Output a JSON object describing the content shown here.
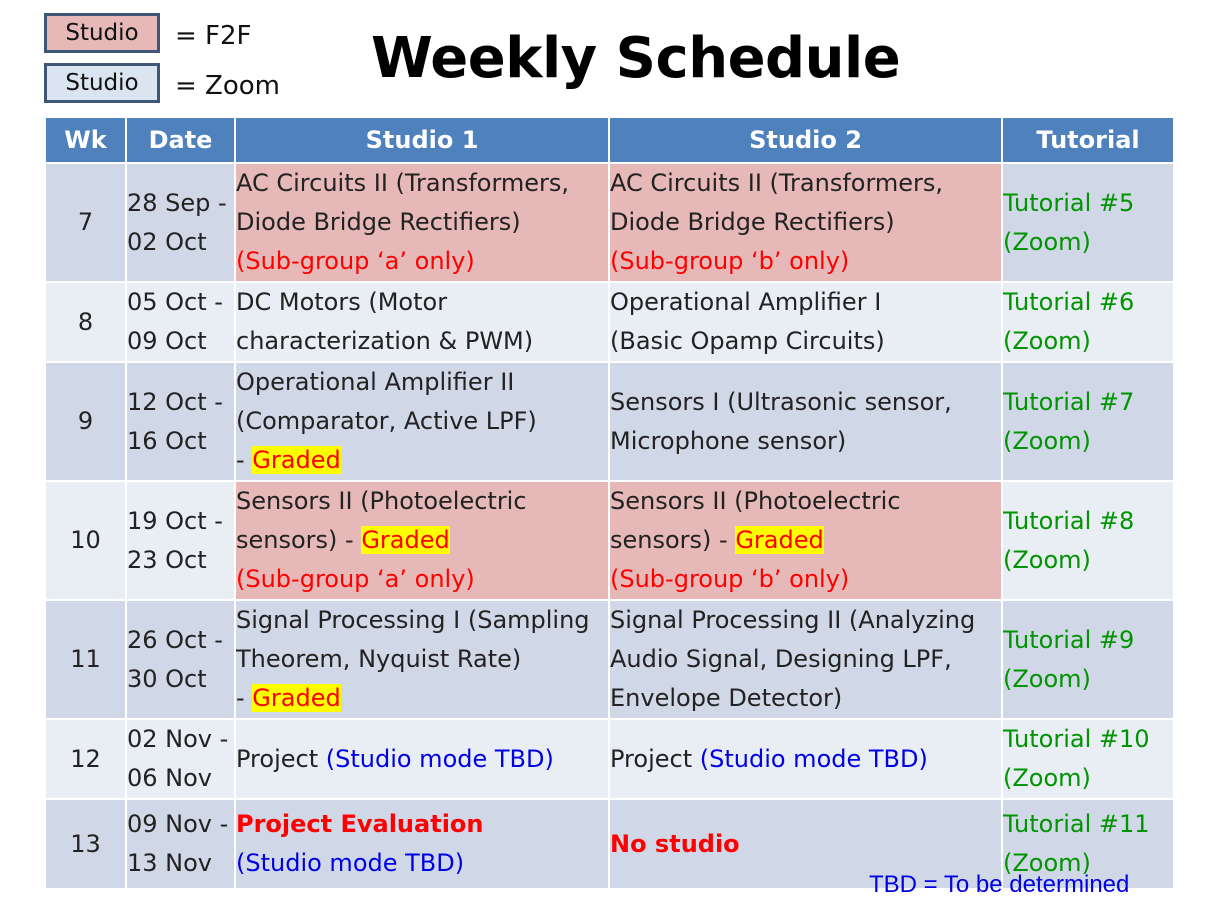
{
  "title": "Weekly Schedule",
  "legend": [
    {
      "label": "Studio",
      "meaning": "= F2F",
      "color": "#e6b9b8"
    },
    {
      "label": "Studio",
      "meaning": "= Zoom",
      "color": "#dbe5f1"
    }
  ],
  "columns": [
    "Wk",
    "Date",
    "Studio 1",
    "Studio 2",
    "Tutorial"
  ],
  "rows": [
    {
      "wk": "7",
      "date1": "28 Sep -",
      "date2": "02 Oct",
      "s1": [
        "AC Circuits II (Transformers,",
        "Diode Bridge Rectifiers)",
        "(Sub-group ‘a’ only)"
      ],
      "s2": [
        "AC Circuits II (Transformers,",
        "Diode Bridge Rectifiers)",
        "(Sub-group ‘b’ only)"
      ],
      "tut1": "Tutorial #5",
      "tut2": "(Zoom)"
    },
    {
      "wk": "8",
      "date1": "05 Oct -",
      "date2": "09 Oct",
      "s1": [
        "DC Motors (Motor",
        "characterization & PWM)"
      ],
      "s2": [
        "Operational Amplifier I",
        "(Basic Opamp Circuits)"
      ],
      "tut1": "Tutorial #6",
      "tut2": "(Zoom)"
    },
    {
      "wk": "9",
      "date1": "12 Oct -",
      "date2": "16 Oct",
      "s1": [
        "Operational Amplifier II",
        "(Comparator, Active LPF)",
        "- ",
        "Graded"
      ],
      "s2": [
        "Sensors I (Ultrasonic sensor,",
        "Microphone sensor)"
      ],
      "tut1": "Tutorial #7",
      "tut2": "(Zoom)"
    },
    {
      "wk": "10",
      "date1": "19 Oct -",
      "date2": "23 Oct",
      "s1": [
        "Sensors II (Photoelectric",
        "sensors) - ",
        "Graded",
        "(Sub-group ‘a’ only)"
      ],
      "s2": [
        "Sensors II (Photoelectric",
        "sensors) - ",
        "Graded",
        "(Sub-group ‘b’ only)"
      ],
      "tut1": "Tutorial #8",
      "tut2": "(Zoom)"
    },
    {
      "wk": "11",
      "date1": "26 Oct -",
      "date2": "30 Oct",
      "s1": [
        "Signal Processing I (Sampling",
        "Theorem, Nyquist Rate)",
        "- ",
        "Graded"
      ],
      "s2": [
        "Signal Processing II (Analyzing",
        "Audio Signal, Designing LPF,",
        "Envelope Detector)"
      ],
      "tut1": "Tutorial #9",
      "tut2": "(Zoom)"
    },
    {
      "wk": "12",
      "date1": "02 Nov -",
      "date2": "06 Nov",
      "s1": [
        "Project ",
        "(Studio mode TBD)"
      ],
      "s2": [
        "Project ",
        "(Studio mode TBD)"
      ],
      "tut1": "Tutorial #10",
      "tut2": "(Zoom)"
    },
    {
      "wk": "13",
      "date1": "09 Nov -",
      "date2": "13 Nov",
      "s1": [
        "Project Evaluation",
        "(Studio mode TBD)"
      ],
      "s2": [
        "No studio"
      ],
      "tut1": "Tutorial #11",
      "tut2": "(Zoom)"
    }
  ],
  "footnote": "TBD = To be determined"
}
